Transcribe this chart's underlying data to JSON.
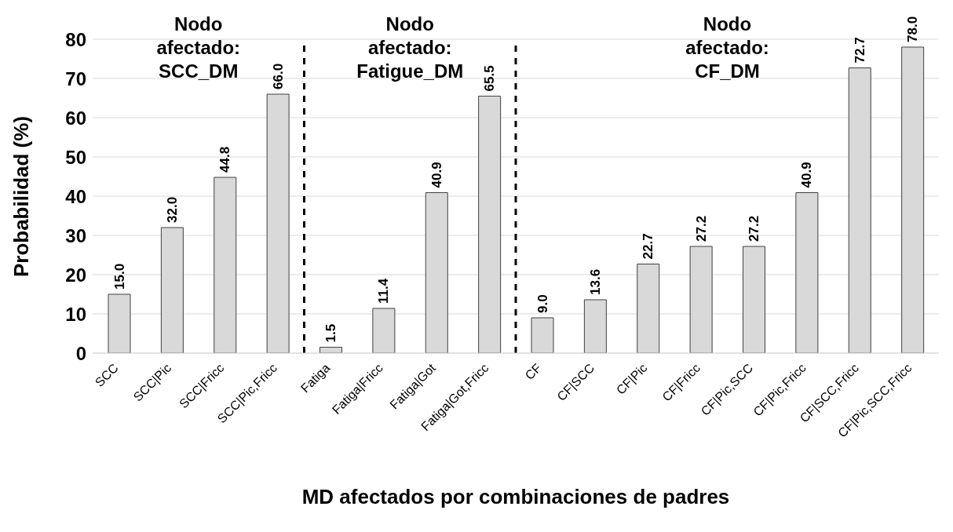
{
  "chart_data": {
    "type": "bar",
    "xlabel": "MD afectados por combinaciones de padres",
    "ylabel": "Probabilidad (%)",
    "categories": [
      "SCC",
      "SCC|Pic",
      "SCC|Fricc",
      "SCC|Pic,Fricc",
      "Fatiga",
      "Fatiga|Fricc",
      "Fatiga|Got",
      "Fatiga|Got,Fricc",
      "CF",
      "CF|SCC",
      "CF|Pic",
      "CF|Fricc",
      "CF|Pic,SCC",
      "CF|Pic,Fricc",
      "CF|SCC,Fricc",
      "CF|Pic,SCC,Fricc"
    ],
    "values": [
      15.0,
      32.0,
      44.8,
      66.0,
      1.5,
      11.4,
      40.9,
      65.5,
      9.0,
      13.6,
      22.7,
      27.2,
      27.2,
      40.9,
      72.7,
      78.0
    ],
    "value_labels": [
      "15.0",
      "32.0",
      "44.8",
      "66.0",
      "1.5",
      "11.4",
      "40.9",
      "65.5",
      "9.0",
      "13.6",
      "22.7",
      "27.2",
      "27.2",
      "40.9",
      "72.7",
      "78.0"
    ],
    "color": "#d9d9d9",
    "ylim": [
      0,
      80
    ],
    "yticks": [
      0,
      10,
      20,
      30,
      40,
      50,
      60,
      70,
      80
    ],
    "grid": "y",
    "legend": false,
    "annotations": [
      "Nodo\nafectado:\nSCC_DM",
      "Nodo\nafectado:\nFatigue_DM",
      "Nodo\nafectado:\nCF_DM"
    ]
  }
}
